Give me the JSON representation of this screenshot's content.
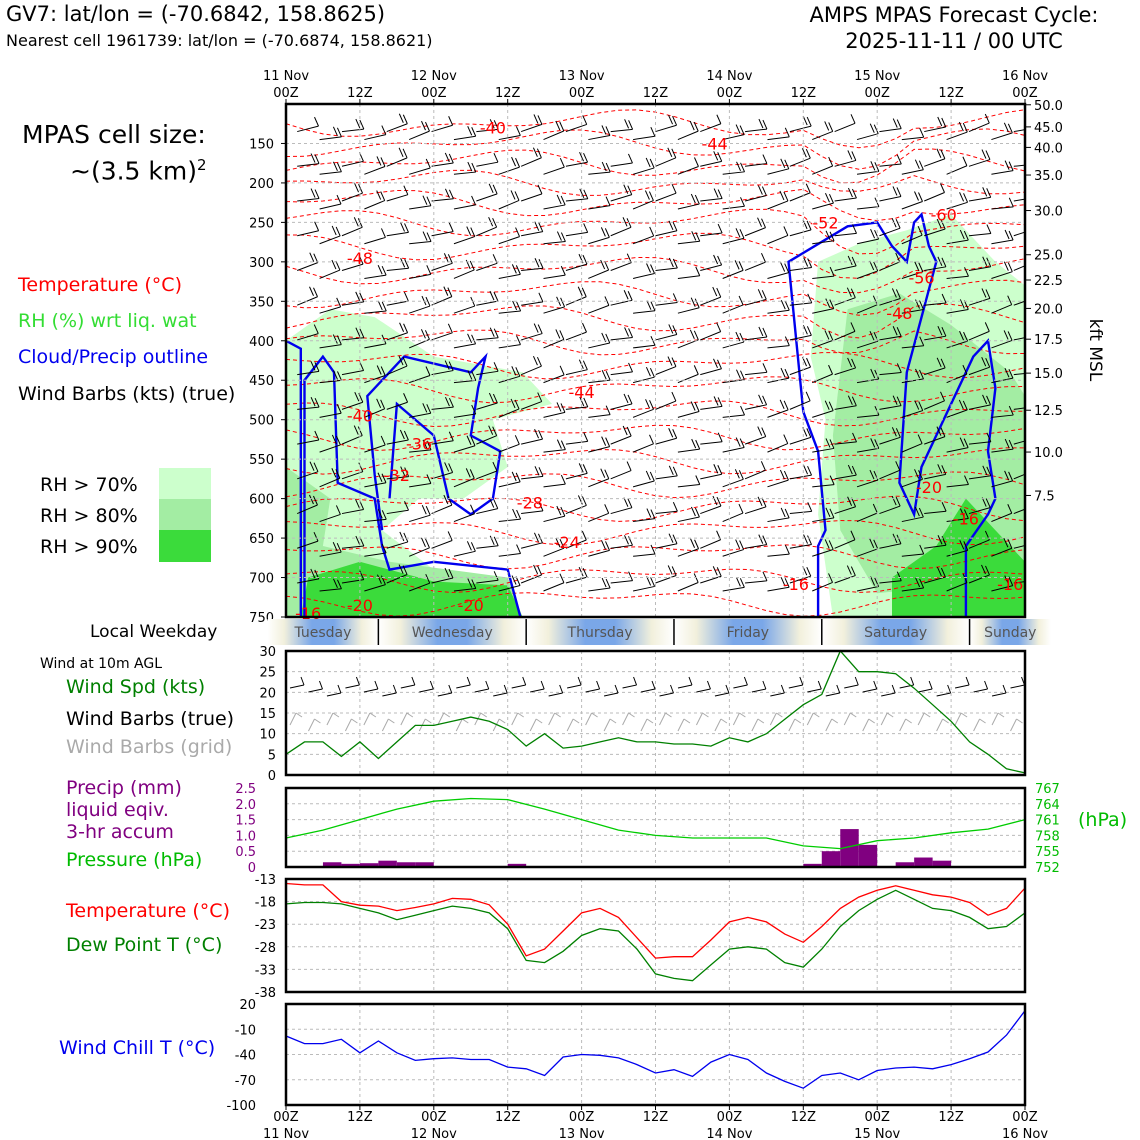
{
  "header": {
    "location_line": "GV7: lat/lon = (-70.6842, 158.8625)",
    "nearest_line": "Nearest cell 1961739: lat/lon = (-70.6874, 158.8621)",
    "forecast_title": "AMPS MPAS Forecast Cycle:",
    "forecast_cycle": "2025-11-11 / 00 UTC"
  },
  "cell_size": {
    "label": "MPAS cell size:",
    "value": "~(3.5 km)",
    "exponent": "2"
  },
  "legend_upper": {
    "temperature": "Temperature (°C)",
    "rh": "RH (%) wrt liq. wat",
    "cloud": "Cloud/Precip outline",
    "barbs": "Wind Barbs (kts) (true)",
    "rh70": "RH > 70%",
    "rh80": "RH > 80%",
    "rh90": "RH > 90%"
  },
  "colors": {
    "rh70": "#ccffcc",
    "rh80": "#a3eda3",
    "rh90": "#3bdb3b",
    "temp": "#ff0000",
    "cloud": "#0000ee",
    "precip": "#800080",
    "pressure": "#00cc00",
    "dew": "#008000",
    "chill": "#0000ee"
  },
  "chart_data": [
    {
      "type": "heatmap",
      "title": "Vertical cross section",
      "top_dates": [
        "11 Nov",
        "",
        "12 Nov",
        "",
        "13 Nov",
        "",
        "14 Nov",
        "",
        "15 Nov",
        "",
        "16 Nov"
      ],
      "time_ticks": [
        "00Z",
        "12Z",
        "00Z",
        "12Z",
        "00Z",
        "12Z",
        "00Z",
        "12Z",
        "00Z",
        "12Z",
        "00Z"
      ],
      "ylabel_left": "hPa",
      "yticks_hpa": [
        150,
        200,
        250,
        300,
        350,
        400,
        450,
        500,
        550,
        600,
        650,
        700,
        750
      ],
      "ylim_hpa": [
        100,
        750
      ],
      "right_axis_label": "kft MSL",
      "right_ticks_kft": [
        "50.0",
        "45.0",
        "40.0",
        "35.0",
        "30.0",
        "25.0",
        "22.5",
        "20.0",
        "17.5",
        "15.0",
        "12.5",
        "10.0",
        "7.5"
      ],
      "right_ticks_hpa": [
        101,
        129,
        155,
        190,
        235,
        291,
        323,
        359,
        398,
        441,
        488,
        541,
        596
      ],
      "temperature_isotherms": [
        {
          "label": "-40",
          "t": 0.28,
          "p": 130
        },
        {
          "label": "-44",
          "t": 0.58,
          "p": 150
        },
        {
          "label": "-52",
          "t": 0.73,
          "p": 250
        },
        {
          "label": "-60",
          "t": 0.89,
          "p": 240
        },
        {
          "label": "-48",
          "t": 0.1,
          "p": 295
        },
        {
          "label": "-56",
          "t": 0.86,
          "p": 320
        },
        {
          "label": "-48",
          "t": 0.83,
          "p": 365
        },
        {
          "label": "-44",
          "t": 0.4,
          "p": 465
        },
        {
          "label": "-40",
          "t": 0.1,
          "p": 495
        },
        {
          "label": "-36",
          "t": 0.18,
          "p": 530
        },
        {
          "label": "-32",
          "t": 0.15,
          "p": 570
        },
        {
          "label": "-28",
          "t": 0.33,
          "p": 605
        },
        {
          "label": "-24",
          "t": 0.38,
          "p": 655
        },
        {
          "label": "-20",
          "t": 0.87,
          "p": 585
        },
        {
          "label": "-16",
          "t": 0.92,
          "p": 625
        },
        {
          "label": "-16",
          "t": 0.69,
          "p": 708
        },
        {
          "label": "-16",
          "t": 0.98,
          "p": 708
        },
        {
          "label": "-20",
          "t": 0.1,
          "p": 735
        },
        {
          "label": "-20",
          "t": 0.25,
          "p": 735
        },
        {
          "label": "-16",
          "t": 0.03,
          "p": 745
        }
      ],
      "weekday_label": "Local Weekday",
      "weekdays": [
        "Tuesday",
        "Wednesday",
        "Thursday",
        "Friday",
        "Saturday",
        "Sunday"
      ]
    },
    {
      "type": "line",
      "title": "Wind at 10m AGL",
      "labels": {
        "speed": "Wind Spd (kts)",
        "true": "Wind Barbs (true)",
        "grid": "Wind Barbs (grid)"
      },
      "yticks": [
        0,
        5,
        10,
        15,
        20,
        25,
        30
      ],
      "ylim": [
        0,
        30
      ],
      "hours": [
        0,
        3,
        6,
        9,
        12,
        15,
        18,
        21,
        24,
        27,
        30,
        33,
        36,
        39,
        42,
        45,
        48,
        51,
        54,
        57,
        60,
        63,
        66,
        69,
        72,
        75,
        78,
        81,
        84,
        87,
        90,
        93,
        96,
        99,
        102,
        105,
        108,
        111,
        114,
        117,
        120
      ],
      "speed": [
        5,
        8,
        8,
        4.5,
        8,
        4,
        8,
        12,
        12,
        13,
        14,
        13,
        11,
        7,
        10,
        6.5,
        7,
        8,
        9,
        8,
        8,
        7.5,
        7.5,
        7,
        9,
        8,
        10,
        13.5,
        17,
        19.5,
        30,
        25,
        25,
        24.5,
        21,
        17,
        13,
        8,
        5,
        1.5,
        0.5
      ]
    },
    {
      "type": "bar",
      "labels": {
        "precip": "Precip (mm)",
        "liquid": "liquid eqiv.",
        "accum": "3-hr accum",
        "pressure": "Pressure (hPa)",
        "hpa_unit": "(hPa)"
      },
      "precip_yticks": [
        "0",
        "0.5",
        "1.0",
        "1.5",
        "2.0",
        "2.5"
      ],
      "precip_ylim": [
        0,
        2.5
      ],
      "precip_hours": [
        7.5,
        10.5,
        13.5,
        16.5,
        19.5,
        22.5,
        37.5,
        85.5,
        88.5,
        91.5,
        94.5,
        100.5,
        103.5,
        106.5
      ],
      "precip_values": [
        0.15,
        0.1,
        0.12,
        0.2,
        0.15,
        0.15,
        0.1,
        0.1,
        0.5,
        1.2,
        0.7,
        0.15,
        0.3,
        0.2
      ],
      "pressure_yticks": [
        "752",
        "755",
        "758",
        "761",
        "764",
        "767"
      ],
      "pressure_ylim": [
        752,
        767
      ],
      "pressure_hours": [
        0,
        6,
        12,
        18,
        24,
        30,
        36,
        42,
        48,
        54,
        60,
        66,
        72,
        78,
        84,
        90,
        96,
        102,
        108,
        114,
        120
      ],
      "pressure_values": [
        757.5,
        759,
        761,
        763,
        764.5,
        765,
        764.8,
        763,
        761,
        759,
        758,
        757.5,
        757.5,
        757.5,
        756,
        755.5,
        757,
        757.5,
        758.5,
        759.2,
        761
      ]
    },
    {
      "type": "line",
      "labels": {
        "temp": "Temperature (°C)",
        "dew": "Dew Point T (°C)"
      },
      "yticks": [
        "-13",
        "-18",
        "-23",
        "-28",
        "-33",
        "-38"
      ],
      "ylim": [
        -38,
        -13
      ],
      "hours": [
        0,
        3,
        6,
        9,
        12,
        15,
        18,
        21,
        24,
        27,
        30,
        33,
        36,
        39,
        42,
        45,
        48,
        51,
        54,
        57,
        60,
        63,
        66,
        69,
        72,
        75,
        78,
        81,
        84,
        87,
        90,
        93,
        96,
        99,
        102,
        105,
        108,
        111,
        114,
        117,
        120
      ],
      "temp": [
        -14,
        -14.3,
        -14.3,
        -18,
        -18.8,
        -19,
        -20,
        -19.3,
        -18.5,
        -17.3,
        -17.5,
        -18.7,
        -23,
        -30,
        -28.5,
        -24.5,
        -20.5,
        -19.5,
        -21.5,
        -26,
        -30.5,
        -30.2,
        -30.2,
        -26.5,
        -22.5,
        -21.5,
        -22.5,
        -25.2,
        -27,
        -23.5,
        -19.5,
        -17,
        -15.5,
        -14.5,
        -15.5,
        -16.5,
        -17,
        -18.2,
        -21,
        -19.5,
        -15
      ]
    },
    {
      "type": "line",
      "labels": {
        "dew_series": "dew point"
      },
      "hours": [
        0,
        3,
        6,
        9,
        12,
        15,
        18,
        21,
        24,
        27,
        30,
        33,
        36,
        39,
        42,
        45,
        48,
        51,
        54,
        57,
        60,
        63,
        66,
        69,
        72,
        75,
        78,
        81,
        84,
        87,
        90,
        93,
        96,
        99,
        102,
        105,
        108,
        111,
        114,
        117,
        120
      ],
      "dew": [
        -18.5,
        -18.2,
        -18.2,
        -18.5,
        -19.5,
        -20.5,
        -22,
        -21,
        -20,
        -19,
        -19.5,
        -20.5,
        -24,
        -31,
        -31.5,
        -29,
        -25.5,
        -24,
        -24.5,
        -28.5,
        -34,
        -35,
        -35.5,
        -32,
        -28.5,
        -28,
        -28.5,
        -31.5,
        -32.5,
        -28.5,
        -23.5,
        -20,
        -17.5,
        -15.5,
        -17.5,
        -19.5,
        -20,
        -21.5,
        -24,
        -23.5,
        -20.5
      ]
    },
    {
      "type": "line",
      "labels": {
        "chill": "Wind Chill T (°C)"
      },
      "yticks": [
        "20",
        "-10",
        "-40",
        "-70",
        "-100"
      ],
      "ylim": [
        -100,
        20
      ],
      "hours": [
        0,
        3,
        6,
        9,
        12,
        15,
        18,
        21,
        24,
        27,
        30,
        33,
        36,
        39,
        42,
        45,
        48,
        51,
        54,
        57,
        60,
        63,
        66,
        69,
        72,
        75,
        78,
        81,
        84,
        87,
        90,
        93,
        96,
        99,
        102,
        105,
        108,
        111,
        114,
        117,
        120
      ],
      "chill": [
        -18,
        -27,
        -27,
        -22,
        -38,
        -24,
        -38,
        -47,
        -45,
        -44,
        -46,
        -46,
        -55,
        -57,
        -65,
        -43,
        -40,
        -41,
        -44,
        -52,
        -62,
        -58,
        -66,
        -49,
        -40,
        -46,
        -62,
        -72,
        -80,
        -65,
        -62,
        -70,
        -59,
        -56,
        -55,
        -57,
        -52,
        -45,
        -37,
        -17,
        12
      ]
    }
  ]
}
